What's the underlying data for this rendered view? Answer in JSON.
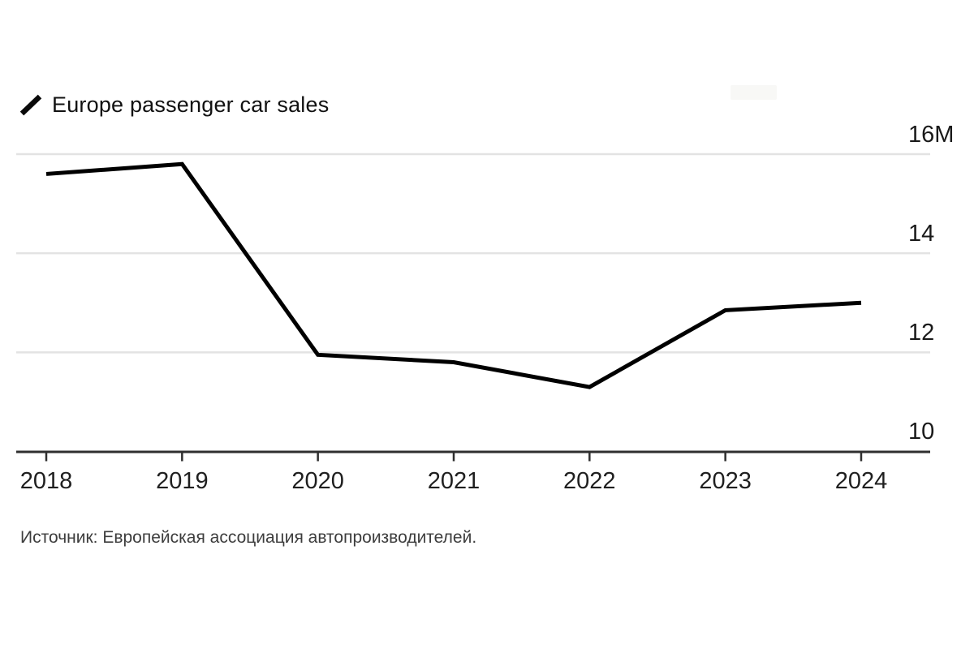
{
  "legend": {
    "label": "Europe passenger car sales",
    "marker": "diagonal-line"
  },
  "chart_data": {
    "type": "line",
    "title": "Europe passenger car sales",
    "x": [
      2018,
      2019,
      2020,
      2021,
      2022,
      2023,
      2024
    ],
    "x_tick_labels": [
      "2018",
      "2019",
      "2020",
      "2021",
      "2022",
      "2023",
      "2024"
    ],
    "series": [
      {
        "name": "Europe passenger car sales",
        "values": [
          15.6,
          15.8,
          11.95,
          11.8,
          11.3,
          12.85,
          13.0
        ]
      }
    ],
    "unit": "millions",
    "ylim": [
      10,
      16
    ],
    "y_ticks": [
      {
        "value": 16,
        "label": "16M"
      },
      {
        "value": 14,
        "label": "14"
      },
      {
        "value": 12,
        "label": "12"
      },
      {
        "value": 10,
        "label": "10"
      }
    ],
    "grid": "horizontal",
    "y_axis_side": "right",
    "legend_position": "top-left",
    "line_color": "#000000"
  },
  "source": {
    "text": "Источник: Европейская ассоциация автопроизводителей."
  },
  "colors": {
    "background": "#ffffff",
    "line": "#000000",
    "grid": "#e3e3e3",
    "axis": "#2f2f2f",
    "tick_text": "#1a1a1a",
    "source_text": "#3d3d3d"
  }
}
